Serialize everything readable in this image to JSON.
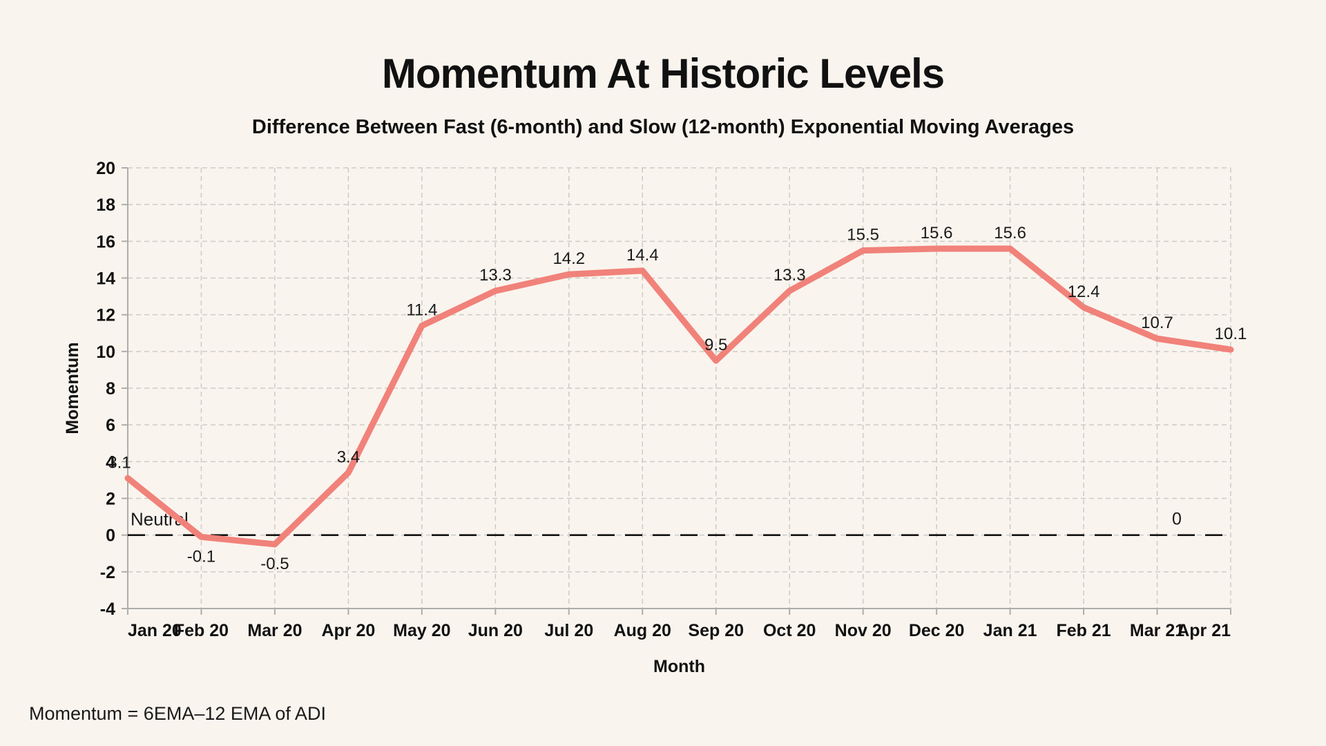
{
  "chart_data": {
    "type": "line",
    "title": "Momentum At Historic Levels",
    "subtitle": "Difference Between Fast (6-month) and Slow (12-month) Exponential Moving Averages",
    "xlabel": "Month",
    "ylabel": "Momentum",
    "categories": [
      "Jan 20",
      "Feb 20",
      "Mar 20",
      "Apr 20",
      "May 20",
      "Jun 20",
      "Jul 20",
      "Aug 20",
      "Sep 20",
      "Oct 20",
      "Nov 20",
      "Dec 20",
      "Jan 21",
      "Feb 21",
      "Mar 21",
      "Apr 21"
    ],
    "values": [
      3.1,
      -0.1,
      -0.5,
      3.4,
      11.4,
      13.3,
      14.2,
      14.4,
      9.5,
      13.3,
      15.5,
      15.6,
      15.6,
      12.4,
      10.7,
      10.1
    ],
    "data_labels": [
      "3.1",
      "-0.1",
      "-0.5",
      "3.4",
      "11.4",
      "13.3",
      "14.2",
      "14.4",
      "9.5",
      "13.3",
      "15.5",
      "15.6",
      "15.6",
      "12.4",
      "10.7",
      "10.1"
    ],
    "ylim": [
      -4,
      20
    ],
    "ytick_step": 2,
    "grid": true,
    "legend": "none",
    "neutral_line": {
      "value": 0,
      "label_left": "Neutral",
      "label_right": "0"
    },
    "footnote": "Momentum = 6EMA–12 EMA of ADI",
    "colors": {
      "background": "#FAF4EE",
      "line": "#F0827A",
      "grid": "#CBCBC6",
      "axis": "#ADADAA",
      "text": "#111111",
      "neutral_line": "#111111"
    }
  }
}
